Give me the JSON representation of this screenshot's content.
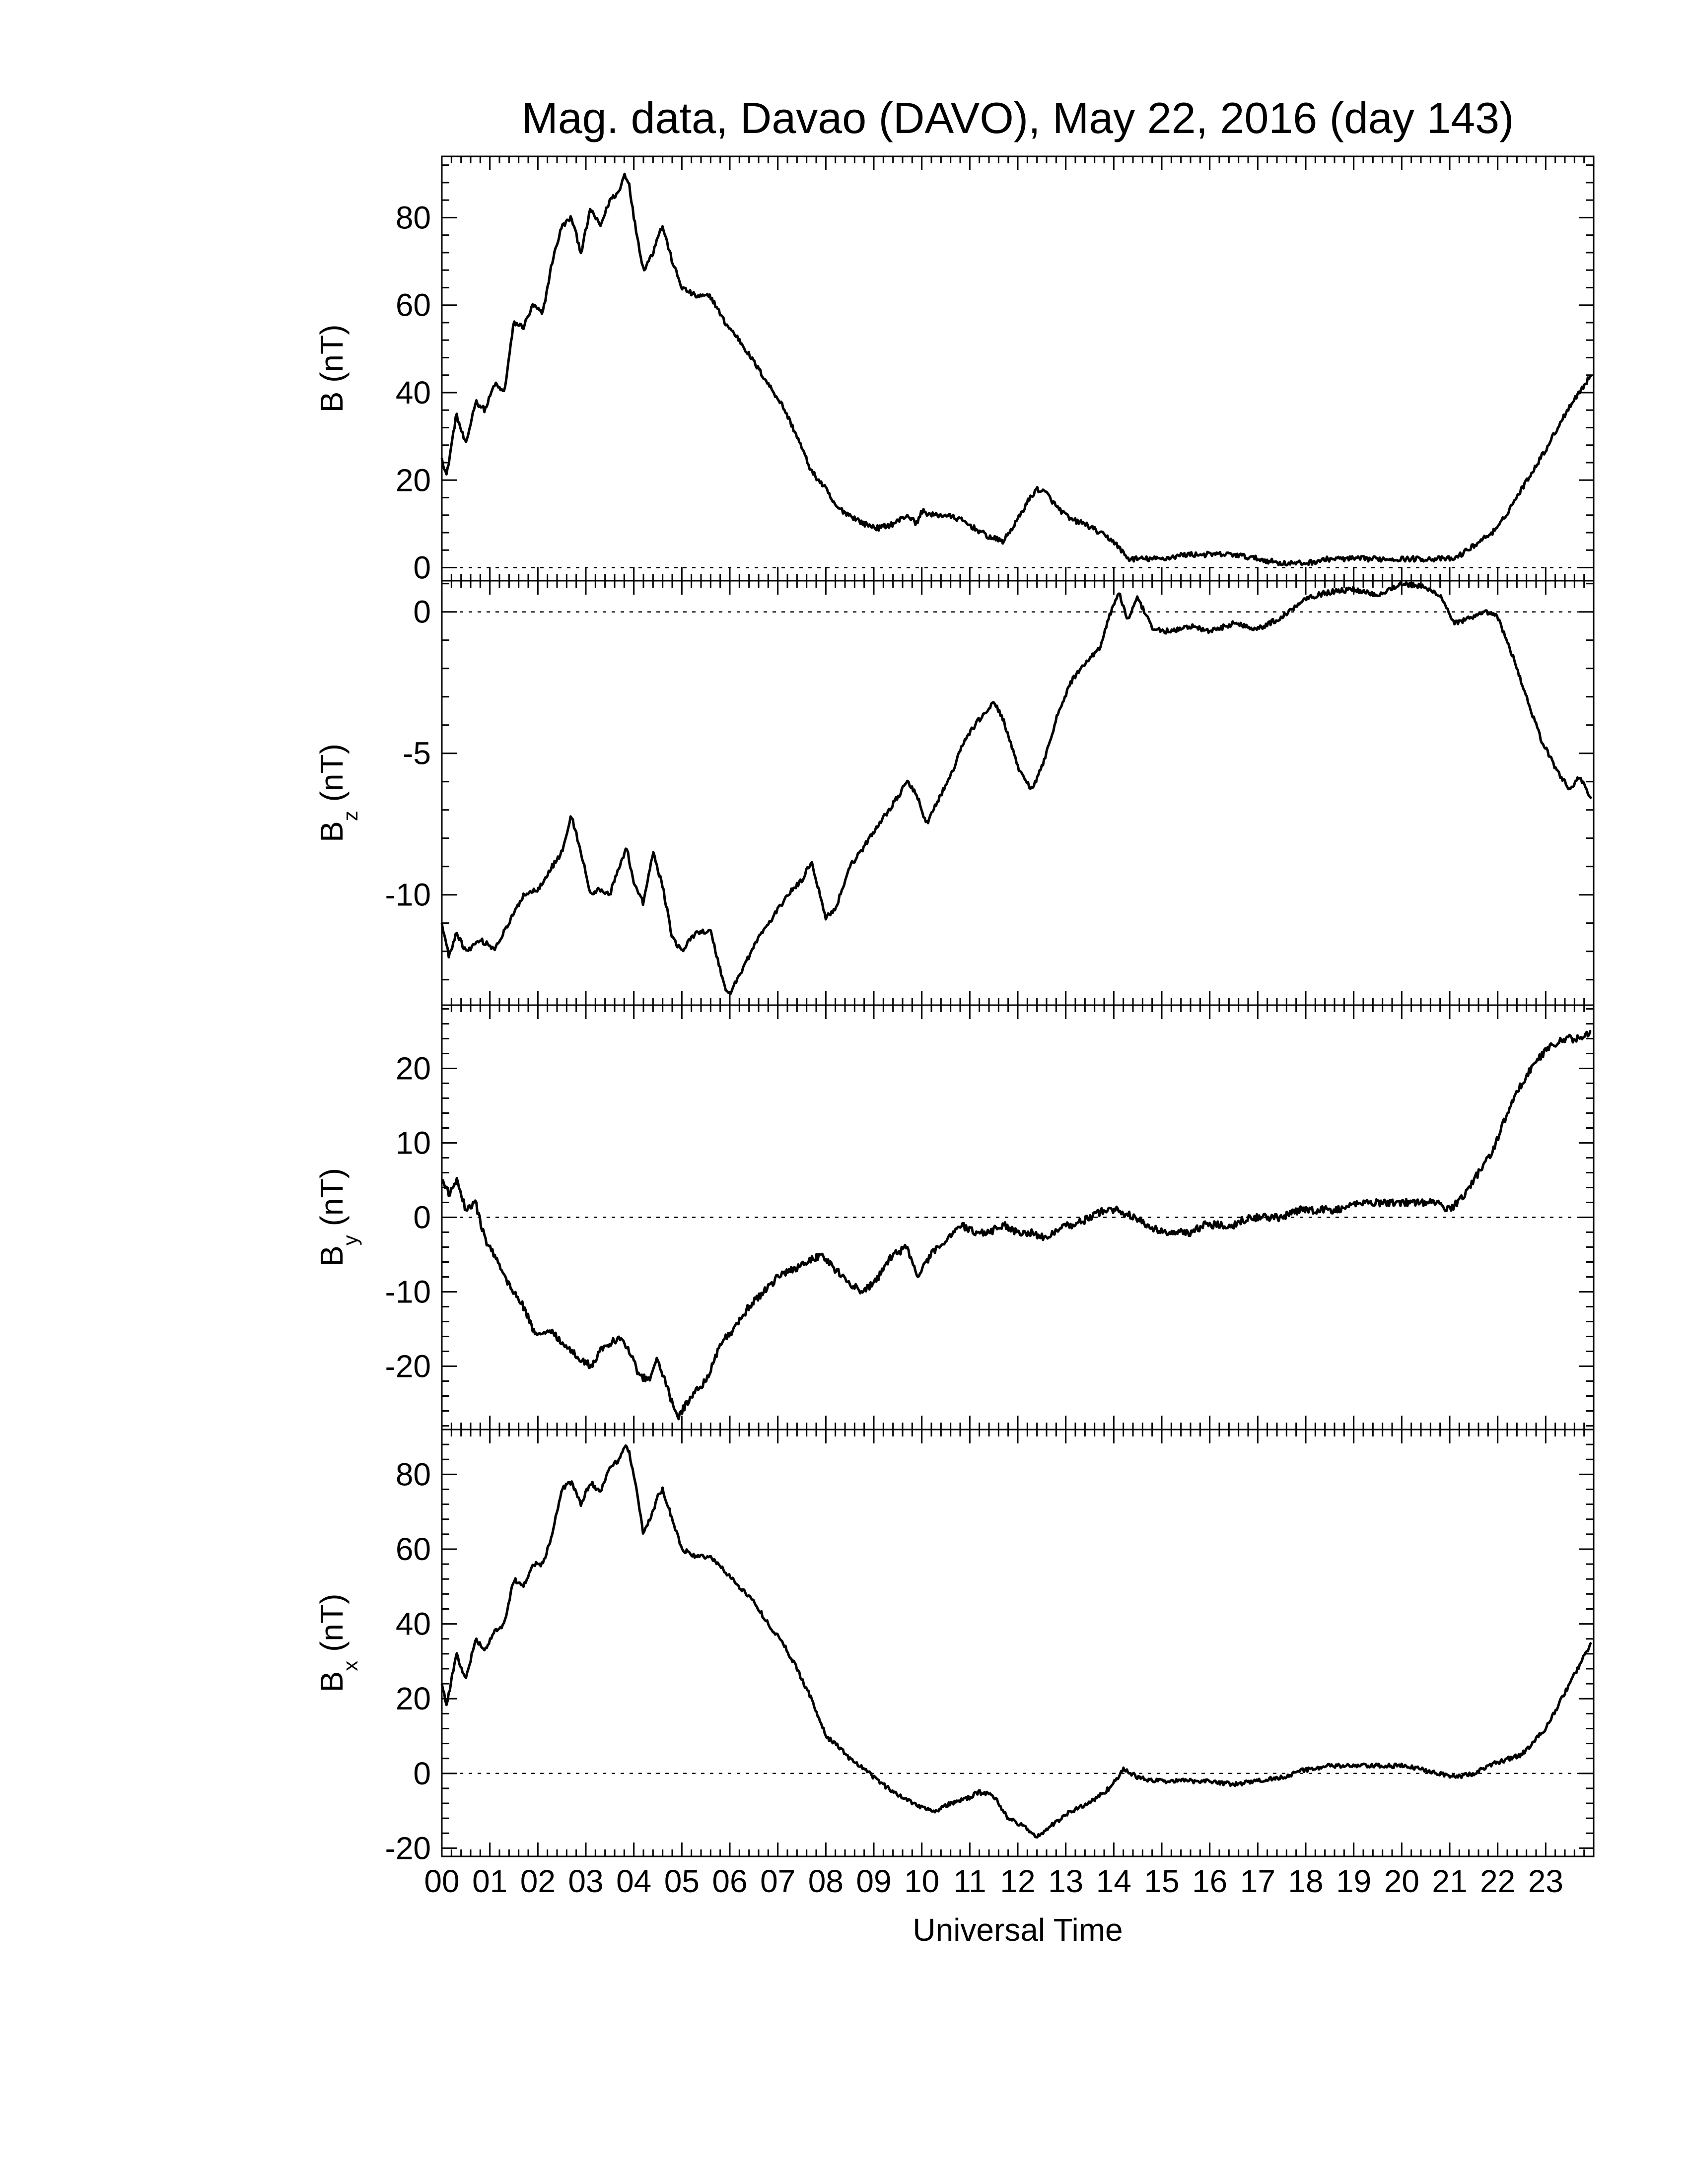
{
  "chart_data": {
    "type": "line",
    "title": "Mag. data, Davao (DAVO), May 22, 2016 (day 143)",
    "xlabel": "Universal Time",
    "x_ticklabels": [
      "00",
      "01",
      "02",
      "03",
      "04",
      "05",
      "06",
      "07",
      "08",
      "09",
      "10",
      "11",
      "12",
      "13",
      "14",
      "15",
      "16",
      "17",
      "18",
      "19",
      "20",
      "21",
      "22",
      "23"
    ],
    "xlim": [
      0,
      24
    ],
    "panels": [
      {
        "id": "B",
        "ylabel": "B (nT)",
        "ylabel_main": "B (nT)",
        "ylabel_sub": "",
        "ylim": [
          -3,
          94
        ],
        "yticks": [
          0,
          20,
          40,
          60,
          80
        ],
        "ytick_labels": [
          "0",
          "20",
          "40",
          "60",
          "80"
        ],
        "zero_line": true,
        "x": [
          0,
          0.1,
          0.3,
          0.5,
          0.7,
          0.9,
          1.1,
          1.3,
          1.5,
          1.7,
          1.9,
          2.1,
          2.3,
          2.5,
          2.7,
          2.9,
          3.1,
          3.3,
          3.5,
          3.7,
          3.8,
          3.9,
          4.0,
          4.2,
          4.4,
          4.5,
          4.6,
          4.8,
          5.0,
          5.3,
          5.6,
          5.9,
          6.2,
          6.5,
          6.8,
          7.1,
          7.4,
          7.7,
          8.0,
          8.2,
          8.5,
          8.8,
          9.1,
          9.4,
          9.7,
          9.9,
          10.0,
          10.2,
          10.5,
          10.8,
          11.1,
          11.4,
          11.7,
          12.0,
          12.2,
          12.4,
          12.6,
          12.8,
          13.1,
          13.4,
          13.7,
          14.0,
          14.3,
          14.6,
          15.0,
          15.5,
          16.0,
          16.5,
          17.0,
          17.5,
          18.0,
          18.5,
          19.0,
          19.5,
          20.0,
          20.5,
          20.8,
          21.1,
          21.5,
          22.0,
          22.5,
          23.0,
          23.5,
          23.95
        ],
        "values": [
          25,
          21,
          35,
          28,
          38,
          36,
          42,
          40,
          56,
          55,
          60,
          58,
          70,
          78,
          80,
          72,
          82,
          78,
          84,
          86,
          90,
          88,
          80,
          68,
          72,
          76,
          78,
          70,
          64,
          62,
          62,
          56,
          52,
          47,
          42,
          37,
          30,
          22,
          18,
          14,
          12,
          10,
          9,
          10,
          12,
          10,
          13,
          12,
          12,
          11,
          9,
          7,
          6,
          11,
          15,
          18,
          17,
          14,
          11,
          10,
          8,
          6,
          2,
          2,
          2,
          3,
          3,
          3,
          2,
          1,
          1,
          2,
          2,
          2,
          2,
          2,
          2,
          2,
          5,
          9,
          18,
          27,
          37,
          44
        ],
        "path_points": 1000,
        "jitter": 0.6
      },
      {
        "id": "Bz",
        "ylabel": "Bz (nT)",
        "ylabel_main": "B",
        "ylabel_sub": "z",
        "ylabel_rest": " (nT)",
        "ylim": [
          -13.9,
          1.1
        ],
        "yticks": [
          -10,
          -5,
          0
        ],
        "ytick_labels": [
          "-10",
          "-5",
          "0"
        ],
        "zero_line": true,
        "x": [
          0,
          0.15,
          0.3,
          0.5,
          0.8,
          1.1,
          1.4,
          1.7,
          2.0,
          2.3,
          2.5,
          2.7,
          2.9,
          3.1,
          3.3,
          3.5,
          3.7,
          3.85,
          4.0,
          4.2,
          4.4,
          4.6,
          4.8,
          5.0,
          5.3,
          5.6,
          5.9,
          6.0,
          6.3,
          6.6,
          6.9,
          7.2,
          7.5,
          7.7,
          8.0,
          8.2,
          8.5,
          8.8,
          9.1,
          9.4,
          9.7,
          9.9,
          10.1,
          10.3,
          10.6,
          10.9,
          11.2,
          11.5,
          11.7,
          12.0,
          12.3,
          12.5,
          12.8,
          13.1,
          13.4,
          13.7,
          13.9,
          14.1,
          14.3,
          14.5,
          14.8,
          15.2,
          15.6,
          16.0,
          16.5,
          17.0,
          17.5,
          18.0,
          18.5,
          19.0,
          19.5,
          20.0,
          20.4,
          20.8,
          21.1,
          21.5,
          21.8,
          22.0,
          22.3,
          22.6,
          22.9,
          23.2,
          23.5,
          23.7,
          23.95
        ],
        "values": [
          -11.0,
          -12.2,
          -11.3,
          -12.0,
          -11.6,
          -11.9,
          -11.0,
          -10.0,
          -9.8,
          -9.0,
          -8.5,
          -7.2,
          -8.5,
          -10.0,
          -9.8,
          -10.0,
          -9.0,
          -8.3,
          -9.6,
          -10.3,
          -8.5,
          -9.7,
          -11.5,
          -12.0,
          -11.3,
          -11.3,
          -13.3,
          -13.5,
          -12.5,
          -11.5,
          -10.8,
          -10.0,
          -9.5,
          -8.8,
          -10.8,
          -10.5,
          -9.0,
          -8.3,
          -7.5,
          -6.8,
          -6.0,
          -6.5,
          -7.5,
          -6.8,
          -5.8,
          -4.5,
          -3.8,
          -3.2,
          -3.8,
          -5.5,
          -6.3,
          -5.5,
          -3.8,
          -2.5,
          -1.8,
          -1.3,
          -0.2,
          0.7,
          -0.3,
          0.5,
          -0.6,
          -0.7,
          -0.5,
          -0.7,
          -0.4,
          -0.6,
          -0.2,
          0.5,
          0.7,
          0.8,
          0.6,
          1.0,
          0.9,
          0.6,
          -0.4,
          -0.2,
          0.0,
          -0.2,
          -1.5,
          -3.0,
          -4.5,
          -5.5,
          -6.3,
          -5.8,
          -6.6
        ],
        "path_points": 1000,
        "jitter": 0.09
      },
      {
        "id": "By",
        "ylabel": "By (nT)",
        "ylabel_main": "B",
        "ylabel_sub": "y",
        "ylabel_rest": " (nT)",
        "ylim": [
          -28.5,
          28.5
        ],
        "yticks": [
          -20,
          -10,
          0,
          10,
          20
        ],
        "ytick_labels": [
          "-20",
          "-10",
          "0",
          "10",
          "20"
        ],
        "zero_line": true,
        "x": [
          0,
          0.15,
          0.3,
          0.5,
          0.7,
          0.9,
          1.1,
          1.3,
          1.5,
          1.7,
          1.9,
          2.1,
          2.3,
          2.5,
          2.7,
          2.9,
          3.1,
          3.3,
          3.5,
          3.7,
          3.9,
          4.1,
          4.3,
          4.5,
          4.7,
          4.9,
          5.2,
          5.5,
          5.8,
          6.1,
          6.4,
          6.7,
          7.0,
          7.3,
          7.6,
          7.9,
          8.2,
          8.5,
          8.8,
          9.1,
          9.4,
          9.7,
          9.9,
          10.2,
          10.5,
          10.8,
          11.1,
          11.4,
          11.7,
          12.0,
          12.3,
          12.6,
          12.9,
          13.2,
          13.5,
          13.8,
          14.1,
          14.4,
          14.7,
          15.0,
          15.3,
          15.6,
          15.9,
          16.2,
          16.5,
          16.8,
          17.1,
          17.5,
          17.9,
          18.3,
          18.7,
          19.1,
          19.5,
          19.9,
          20.3,
          20.7,
          21.0,
          21.3,
          21.6,
          21.9,
          22.2,
          22.5,
          22.8,
          23.1,
          23.4,
          23.7,
          23.95
        ],
        "values": [
          5,
          3,
          5,
          1,
          2,
          -3,
          -5,
          -8,
          -10,
          -12,
          -15,
          -16,
          -15,
          -17,
          -18,
          -19,
          -20,
          -18,
          -17,
          -16,
          -18,
          -21,
          -22,
          -19,
          -23,
          -27,
          -24,
          -22,
          -17,
          -15,
          -12,
          -10,
          -8,
          -7,
          -6,
          -5,
          -7,
          -9,
          -10,
          -8,
          -5,
          -4,
          -8,
          -5,
          -3,
          -1,
          -2,
          -2,
          -1,
          -2,
          -2,
          -3,
          -1,
          -1,
          0,
          1,
          1,
          0,
          -1,
          -2,
          -2,
          -2,
          -1,
          -1,
          -1,
          0,
          0,
          0,
          1,
          1,
          1,
          2,
          2,
          2,
          2,
          2,
          1,
          3,
          6,
          9,
          14,
          18,
          21,
          23,
          24,
          24,
          25
        ],
        "path_points": 1000,
        "jitter": 0.5
      },
      {
        "id": "Bx",
        "ylabel": "Bx (nT)",
        "ylabel_main": "B",
        "ylabel_sub": "x",
        "ylabel_rest": " (nT)",
        "ylim": [
          -22.2,
          92
        ],
        "yticks": [
          -20,
          0,
          20,
          40,
          60,
          80
        ],
        "ytick_labels": [
          "-20",
          "0",
          "20",
          "40",
          "60",
          "80"
        ],
        "zero_line": true,
        "x": [
          0,
          0.1,
          0.3,
          0.5,
          0.7,
          0.9,
          1.1,
          1.3,
          1.5,
          1.7,
          1.9,
          2.1,
          2.3,
          2.5,
          2.7,
          2.9,
          3.1,
          3.3,
          3.5,
          3.7,
          3.8,
          3.9,
          4.0,
          4.2,
          4.4,
          4.5,
          4.6,
          4.8,
          5.0,
          5.3,
          5.6,
          5.9,
          6.2,
          6.5,
          6.8,
          7.1,
          7.4,
          7.7,
          8.0,
          8.2,
          8.5,
          8.8,
          9.1,
          9.4,
          9.7,
          10.0,
          10.3,
          10.6,
          10.9,
          11.2,
          11.5,
          11.8,
          12.1,
          12.4,
          12.7,
          13.0,
          13.3,
          13.6,
          13.9,
          14.2,
          14.5,
          14.8,
          15.2,
          15.6,
          16.0,
          16.5,
          17.0,
          17.5,
          18.0,
          18.5,
          19.0,
          19.5,
          20.0,
          20.5,
          20.8,
          21.1,
          21.5,
          22.0,
          22.5,
          23.0,
          23.5,
          23.95
        ],
        "values": [
          24,
          18,
          32,
          25,
          36,
          33,
          38,
          40,
          52,
          50,
          56,
          56,
          64,
          76,
          78,
          72,
          78,
          75,
          82,
          84,
          88,
          86,
          80,
          64,
          70,
          74,
          76,
          68,
          60,
          58,
          58,
          54,
          50,
          46,
          40,
          35,
          28,
          20,
          10,
          8,
          4,
          1,
          -2,
          -5,
          -7,
          -9,
          -10,
          -8,
          -7,
          -5,
          -6,
          -12,
          -14,
          -17,
          -14,
          -11,
          -9,
          -7,
          -4,
          1,
          -1,
          -2,
          -2,
          -2,
          -2,
          -3,
          -2,
          -1,
          1,
          2,
          2,
          2,
          2,
          1,
          0,
          -1,
          0,
          3,
          5,
          12,
          24,
          35
        ],
        "path_points": 1000,
        "jitter": 0.6
      }
    ]
  }
}
